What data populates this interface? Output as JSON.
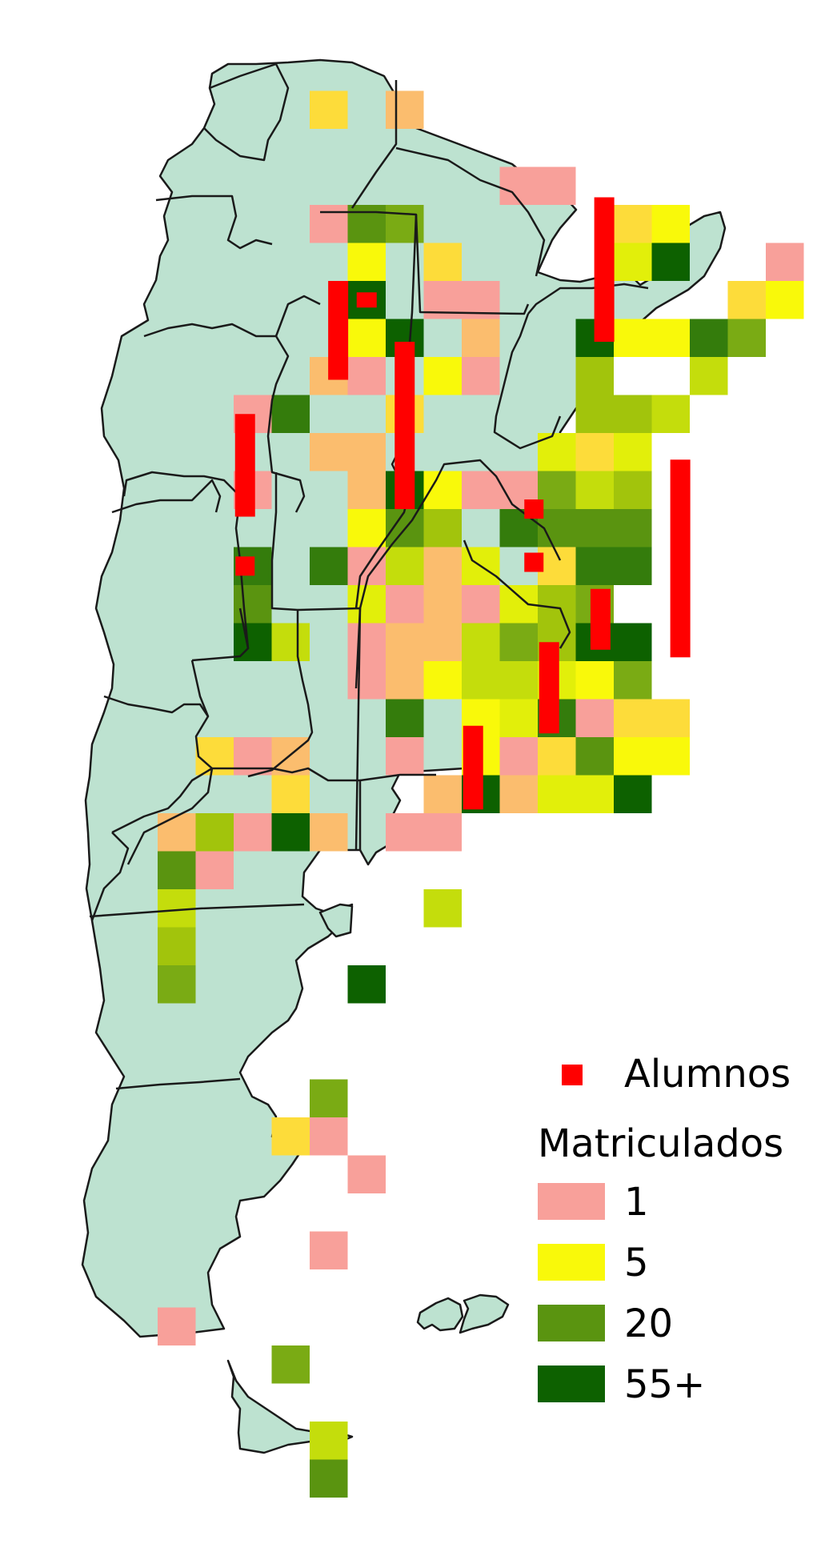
{
  "legend": {
    "alumnos_label": "Alumnos",
    "matriculados_title": "Matriculados",
    "items": [
      {
        "label": "1",
        "color": "#f8a09a"
      },
      {
        "label": "5",
        "color": "#f9f90a"
      },
      {
        "label": "20",
        "color": "#5a9410"
      },
      {
        "label": "55+",
        "color": "#0d6100"
      }
    ]
  },
  "colors": {
    "land": "#bde2d0",
    "border": "#1a1a1a",
    "alumnos": "#ff0000",
    "scale": [
      "#f8a09a",
      "#fbbd6e",
      "#fddc3a",
      "#f9f90a",
      "#e2ef0a",
      "#c4dd0c",
      "#a2c40c",
      "#7aab14",
      "#5a9410",
      "#347c0c",
      "#0d6100"
    ]
  },
  "matriculados_grid": [
    [
      6,
      1,
      2
    ],
    [
      8,
      1,
      1
    ],
    [
      11,
      3,
      0
    ],
    [
      12,
      3,
      0
    ],
    [
      14,
      4,
      2
    ],
    [
      6,
      4,
      0
    ],
    [
      7,
      4,
      8
    ],
    [
      8,
      4,
      7
    ],
    [
      15,
      4,
      3
    ],
    [
      7,
      5,
      3
    ],
    [
      9,
      5,
      2
    ],
    [
      14,
      5,
      4
    ],
    [
      15,
      5,
      10
    ],
    [
      18,
      5,
      0
    ],
    [
      7,
      6,
      10
    ],
    [
      9,
      6,
      0
    ],
    [
      10,
      6,
      0
    ],
    [
      17,
      6,
      2
    ],
    [
      18,
      6,
      3
    ],
    [
      7,
      7,
      3
    ],
    [
      8,
      7,
      10
    ],
    [
      10,
      7,
      1
    ],
    [
      13,
      7,
      10
    ],
    [
      14,
      7,
      3
    ],
    [
      15,
      7,
      3
    ],
    [
      16,
      7,
      9
    ],
    [
      17,
      7,
      7
    ],
    [
      6,
      8,
      1
    ],
    [
      7,
      8,
      0
    ],
    [
      9,
      8,
      3
    ],
    [
      10,
      8,
      0
    ],
    [
      13,
      8,
      6
    ],
    [
      16,
      8,
      5
    ],
    [
      4,
      9,
      0
    ],
    [
      5,
      9,
      9
    ],
    [
      8,
      9,
      2
    ],
    [
      13,
      9,
      6
    ],
    [
      14,
      9,
      6
    ],
    [
      15,
      9,
      5
    ],
    [
      6,
      10,
      1
    ],
    [
      7,
      10,
      1
    ],
    [
      12,
      10,
      4
    ],
    [
      13,
      10,
      2
    ],
    [
      14,
      10,
      4
    ],
    [
      4,
      11,
      0
    ],
    [
      7,
      11,
      1
    ],
    [
      8,
      11,
      10
    ],
    [
      9,
      11,
      3
    ],
    [
      10,
      11,
      0
    ],
    [
      11,
      11,
      0
    ],
    [
      12,
      11,
      7
    ],
    [
      13,
      11,
      5
    ],
    [
      14,
      11,
      6
    ],
    [
      7,
      12,
      3
    ],
    [
      8,
      12,
      8
    ],
    [
      9,
      12,
      6
    ],
    [
      11,
      12,
      9
    ],
    [
      12,
      12,
      8
    ],
    [
      13,
      12,
      8
    ],
    [
      14,
      12,
      8
    ],
    [
      4,
      13,
      9
    ],
    [
      6,
      13,
      9
    ],
    [
      7,
      13,
      0
    ],
    [
      8,
      13,
      5
    ],
    [
      9,
      13,
      1
    ],
    [
      10,
      13,
      4
    ],
    [
      12,
      13,
      2
    ],
    [
      13,
      13,
      9
    ],
    [
      14,
      13,
      9
    ],
    [
      4,
      14,
      8
    ],
    [
      7,
      14,
      4
    ],
    [
      8,
      14,
      0
    ],
    [
      9,
      14,
      1
    ],
    [
      10,
      14,
      0
    ],
    [
      11,
      14,
      4
    ],
    [
      12,
      14,
      6
    ],
    [
      13,
      14,
      7
    ],
    [
      4,
      15,
      10
    ],
    [
      5,
      15,
      5
    ],
    [
      7,
      15,
      0
    ],
    [
      8,
      15,
      1
    ],
    [
      9,
      15,
      1
    ],
    [
      10,
      15,
      5
    ],
    [
      11,
      15,
      7
    ],
    [
      12,
      15,
      6
    ],
    [
      13,
      15,
      10
    ],
    [
      14,
      15,
      10
    ],
    [
      7,
      16,
      0
    ],
    [
      8,
      16,
      1
    ],
    [
      9,
      16,
      3
    ],
    [
      10,
      16,
      5
    ],
    [
      11,
      16,
      5
    ],
    [
      12,
      16,
      4
    ],
    [
      13,
      16,
      3
    ],
    [
      14,
      16,
      7
    ],
    [
      8,
      17,
      9
    ],
    [
      10,
      17,
      3
    ],
    [
      11,
      17,
      4
    ],
    [
      12,
      17,
      9
    ],
    [
      13,
      17,
      0
    ],
    [
      14,
      17,
      2
    ],
    [
      15,
      17,
      2
    ],
    [
      3,
      18,
      2
    ],
    [
      4,
      18,
      0
    ],
    [
      5,
      18,
      1
    ],
    [
      8,
      18,
      0
    ],
    [
      10,
      18,
      3
    ],
    [
      11,
      18,
      0
    ],
    [
      12,
      18,
      2
    ],
    [
      13,
      18,
      8
    ],
    [
      14,
      18,
      3
    ],
    [
      15,
      18,
      3
    ],
    [
      5,
      19,
      2
    ],
    [
      9,
      19,
      1
    ],
    [
      10,
      19,
      10
    ],
    [
      11,
      19,
      1
    ],
    [
      12,
      19,
      4
    ],
    [
      13,
      19,
      4
    ],
    [
      14,
      19,
      10
    ],
    [
      2,
      20,
      1
    ],
    [
      3,
      20,
      6
    ],
    [
      4,
      20,
      0
    ],
    [
      5,
      20,
      10
    ],
    [
      6,
      20,
      1
    ],
    [
      8,
      20,
      0
    ],
    [
      9,
      20,
      0
    ],
    [
      2,
      21,
      8
    ],
    [
      3,
      21,
      0
    ],
    [
      2,
      22,
      5
    ],
    [
      9,
      22,
      5
    ],
    [
      2,
      23,
      6
    ],
    [
      2,
      24,
      7
    ],
    [
      7,
      24,
      10
    ],
    [
      6,
      27,
      7
    ],
    [
      5,
      28,
      2
    ],
    [
      6,
      28,
      0
    ],
    [
      7,
      29,
      0
    ],
    [
      6,
      31,
      0
    ],
    [
      2,
      33,
      0
    ],
    [
      5,
      34,
      7
    ],
    [
      6,
      36,
      5
    ],
    [
      6,
      37,
      8
    ]
  ],
  "alumnos_bars": [
    [
      13.75,
      3.8,
      7.6
    ],
    [
      6.75,
      6.0,
      8.6
    ],
    [
      7.5,
      6.3,
      6.7
    ],
    [
      8.5,
      7.6,
      12.0
    ],
    [
      4.3,
      9.5,
      12.2
    ],
    [
      15.75,
      10.7,
      15.9
    ],
    [
      12.3,
      15.5,
      17.9
    ],
    [
      10.3,
      17.7,
      19.9
    ],
    [
      13.65,
      14.1,
      15.7
    ]
  ],
  "alumnos_dots": [
    [
      4.3,
      13.5
    ],
    [
      11.9,
      12.0
    ],
    [
      11.9,
      13.4
    ]
  ]
}
